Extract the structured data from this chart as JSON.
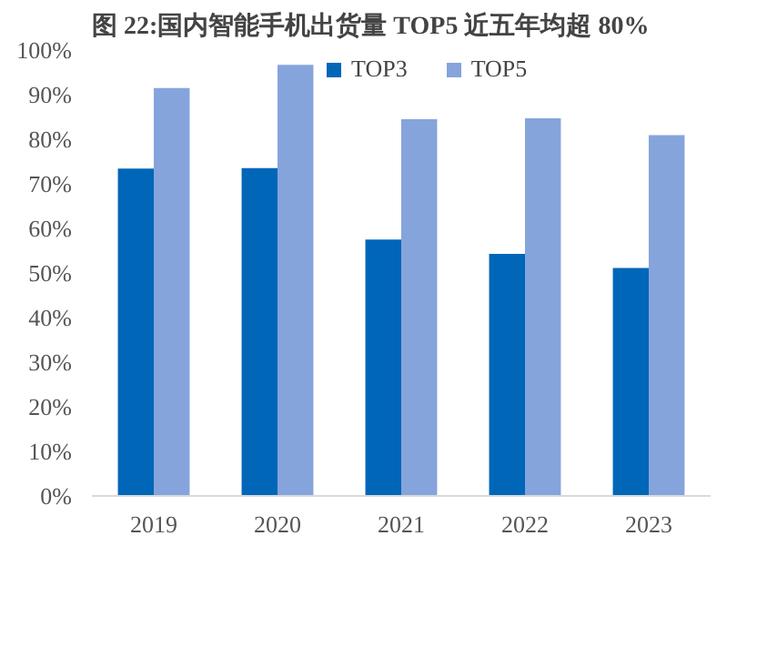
{
  "chart_data": {
    "type": "bar",
    "title": "图 22:国内智能手机出货量 TOP5 近五年均超 80%",
    "categories": [
      "2019",
      "2020",
      "2021",
      "2022",
      "2023"
    ],
    "series": [
      {
        "name": "TOP3",
        "color": "#0066b8",
        "values": [
          73.4,
          73.5,
          57.5,
          54.3,
          51.1
        ]
      },
      {
        "name": "TOP5",
        "color": "#85a4dc",
        "values": [
          91.5,
          96.7,
          84.5,
          84.7,
          80.9
        ]
      }
    ],
    "ylim": [
      0,
      100
    ],
    "yticks": [
      {
        "value": 0,
        "label": "0%"
      },
      {
        "value": 10,
        "label": "10%"
      },
      {
        "value": 20,
        "label": "20%"
      },
      {
        "value": 30,
        "label": "30%"
      },
      {
        "value": 40,
        "label": "40%"
      },
      {
        "value": 50,
        "label": "50%"
      },
      {
        "value": 60,
        "label": "60%"
      },
      {
        "value": 70,
        "label": "70%"
      },
      {
        "value": 80,
        "label": "80%"
      },
      {
        "value": 90,
        "label": "90%"
      },
      {
        "value": 100,
        "label": "100%"
      }
    ],
    "grid": false,
    "legend": "top"
  }
}
